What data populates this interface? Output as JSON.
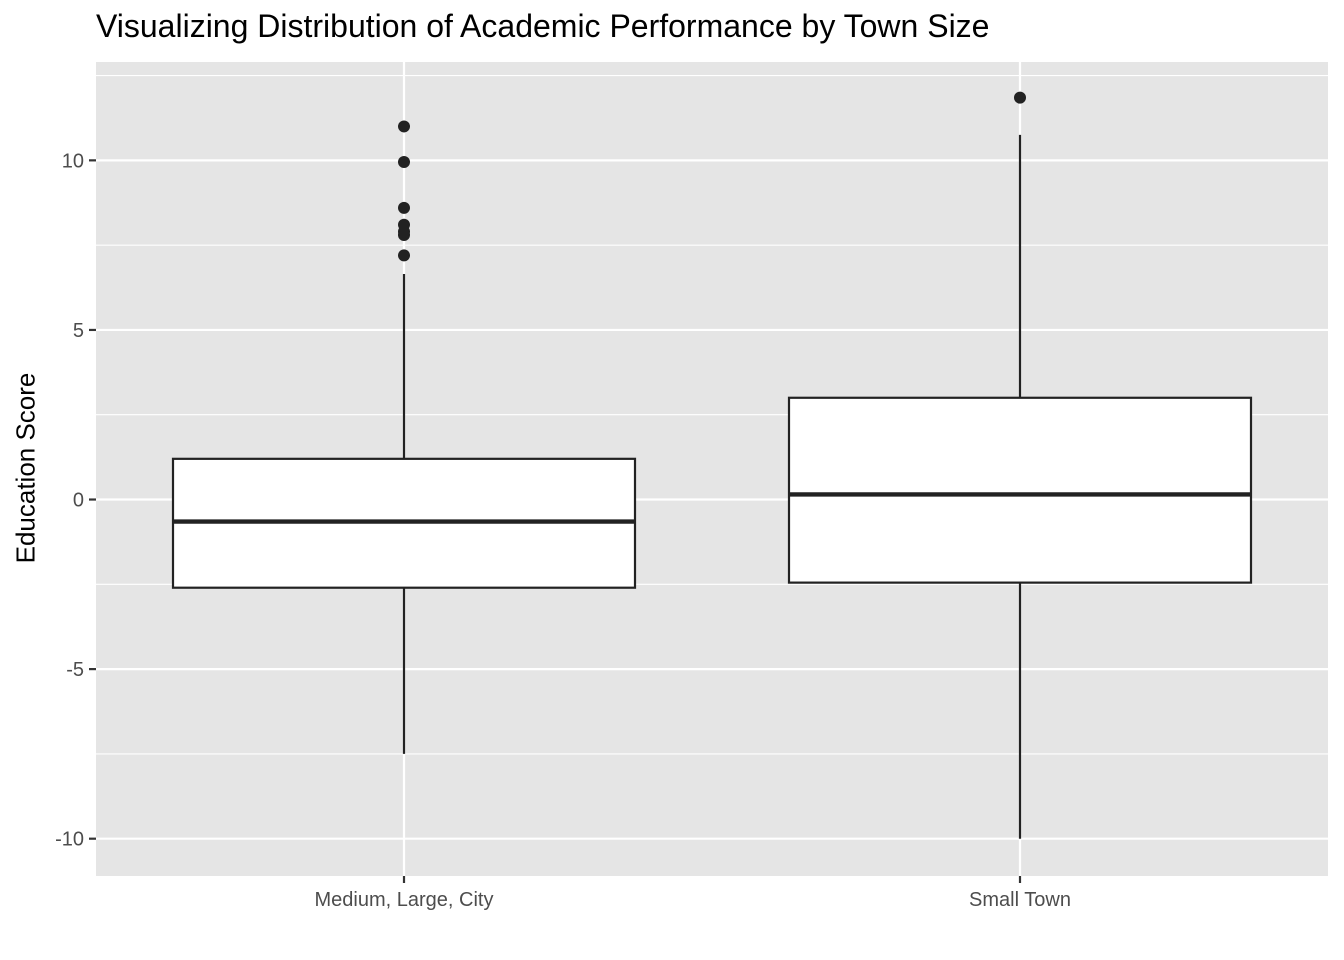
{
  "chart_data": {
    "type": "boxplot",
    "title": "Visualizing Distribution of Academic Performance by Town Size",
    "xlabel": "",
    "ylabel": "Education Score",
    "ylim": [
      -11.1,
      12.9
    ],
    "yticks": [
      -10,
      -5,
      0,
      5,
      10
    ],
    "ytick_labels": [
      "-10",
      "-5",
      "0",
      "5",
      "10"
    ],
    "grid": true,
    "categories": [
      "Medium, Large, City",
      "Small Town"
    ],
    "boxes": [
      {
        "category": "Medium, Large, City",
        "min": -7.5,
        "q1": -2.6,
        "median": -0.65,
        "q3": 1.2,
        "max": 6.65,
        "outliers": [
          7.2,
          7.8,
          7.9,
          8.1,
          8.6,
          9.95,
          11.0
        ]
      },
      {
        "category": "Small Town",
        "min": -10.0,
        "q1": -2.45,
        "median": 0.15,
        "q3": 3.0,
        "max": 10.75,
        "outliers": [
          11.85
        ]
      }
    ],
    "colors": {
      "panel": "#e5e5e5",
      "grid": "#ffffff",
      "box_fill": "#ffffff",
      "stroke": "#222222"
    }
  }
}
